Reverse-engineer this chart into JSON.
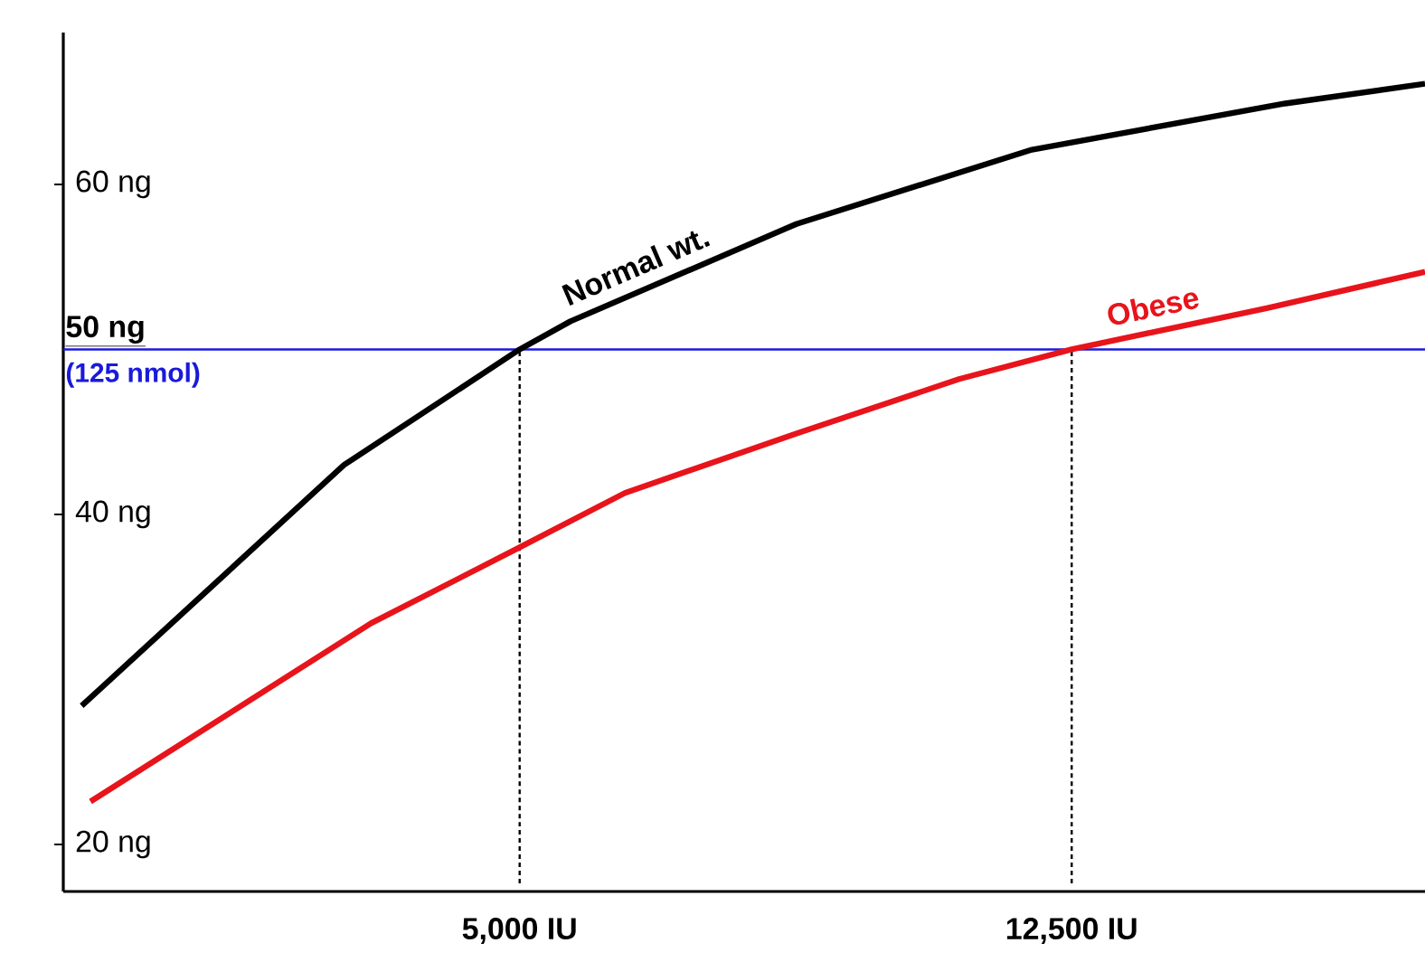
{
  "chart_data": {
    "type": "line",
    "xlim": [
      -1200,
      17300
    ],
    "ylim": [
      17.15,
      69.2
    ],
    "xticks": [
      {
        "value": 5000,
        "label": "5,000 IU"
      },
      {
        "value": 12500,
        "label": "12,500 IU"
      }
    ],
    "yticks": [
      {
        "value": 20,
        "label": "20 ng"
      },
      {
        "value": 40,
        "label": "40 ng"
      },
      {
        "value": 60,
        "label": "60 ng"
      }
    ],
    "series": [
      {
        "name": "Normal wt.",
        "color": "#000000",
        "x": [
          -950,
          2615,
          5000,
          5690,
          8760,
          11960,
          15400,
          17300
        ],
        "values": [
          28.4,
          43.0,
          50,
          51.7,
          57.6,
          62.1,
          64.9,
          66.1
        ]
      },
      {
        "name": "Obese",
        "color": "#e8141b",
        "x": [
          -830,
          2980,
          5000,
          6430,
          8760,
          10970,
          12500,
          15150,
          17300
        ],
        "values": [
          22.6,
          33.4,
          38.0,
          41.3,
          44.9,
          48.2,
          50,
          52.5,
          54.7
        ]
      }
    ],
    "ref_lines": [
      {
        "axis": "y",
        "value": 50,
        "label": "50 ng",
        "color": "#1a1adb",
        "line_style": "solid"
      },
      {
        "axis": "x",
        "value": 5000,
        "color": "#000000",
        "line_style": "dotted"
      },
      {
        "axis": "x",
        "value": 12500,
        "color": "#000000",
        "line_style": "dotted"
      }
    ],
    "annotations": [
      "(125 nmol)"
    ],
    "grid": false,
    "marker": "none",
    "line_style": "solid"
  }
}
